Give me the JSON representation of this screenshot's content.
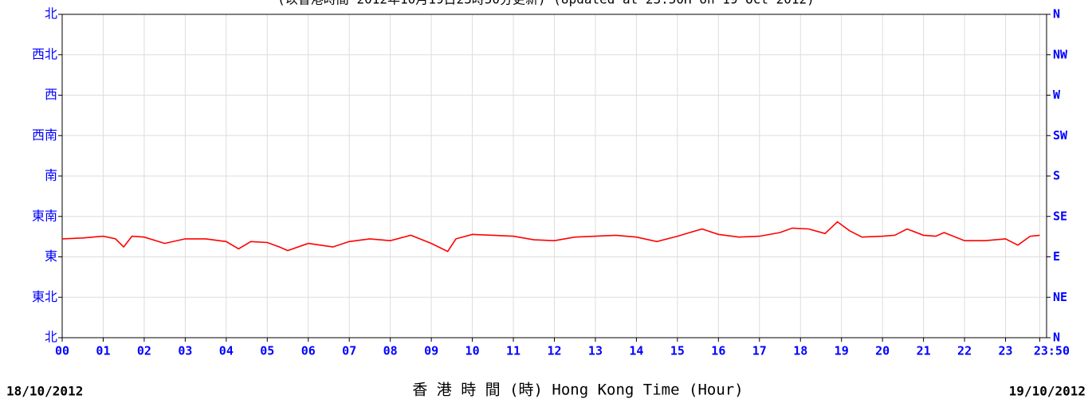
{
  "chart_data": {
    "type": "line",
    "title": "(以香港時間 2012年10月19日23時50分更新) (Updated at 23:50H on 19 Oct 2012)",
    "x_label": "香 港 時 間 (時) Hong Kong Time (Hour)",
    "start_date": "18/10/2012",
    "end_date": "19/10/2012",
    "xlim": [
      0,
      24
    ],
    "xticks": [
      {
        "value": 0,
        "label": "00"
      },
      {
        "value": 1,
        "label": "01"
      },
      {
        "value": 2,
        "label": "02"
      },
      {
        "value": 3,
        "label": "03"
      },
      {
        "value": 4,
        "label": "04"
      },
      {
        "value": 5,
        "label": "05"
      },
      {
        "value": 6,
        "label": "06"
      },
      {
        "value": 7,
        "label": "07"
      },
      {
        "value": 8,
        "label": "08"
      },
      {
        "value": 9,
        "label": "09"
      },
      10,
      11,
      12,
      13,
      14,
      15,
      16,
      17,
      18,
      19,
      20,
      21,
      22,
      23,
      {
        "value": 23.833,
        "label": "23:50"
      }
    ],
    "ylim": [
      0,
      360
    ],
    "yticks": [
      {
        "value": 0,
        "label": "北"
      },
      {
        "value": 45,
        "label": "東北"
      },
      {
        "value": 90,
        "label": "東"
      },
      {
        "value": 135,
        "label": "東南"
      },
      {
        "value": 180,
        "label": "南"
      },
      {
        "value": 225,
        "label": "西南"
      },
      {
        "value": 270,
        "label": "西"
      },
      {
        "value": 315,
        "label": "西北"
      },
      {
        "value": 360,
        "label": "北"
      }
    ],
    "y2lim": [
      0,
      360
    ],
    "y2ticks": [
      {
        "value": 0,
        "label": "N"
      },
      {
        "value": 45,
        "label": "NE"
      },
      {
        "value": 90,
        "label": "E"
      },
      {
        "value": 135,
        "label": "SE"
      },
      {
        "value": 180,
        "label": "S"
      },
      {
        "value": 225,
        "label": "SW"
      },
      {
        "value": 270,
        "label": "W"
      },
      {
        "value": 315,
        "label": "NW"
      },
      {
        "value": 360,
        "label": "N"
      }
    ],
    "grid": true,
    "x": [
      0,
      0.5,
      1,
      1.3,
      1.5,
      1.7,
      2,
      2.5,
      3,
      3.5,
      4,
      4.3,
      4.6,
      5,
      5.3,
      5.5,
      6,
      6.3,
      6.6,
      7,
      7.5,
      8,
      8.5,
      9,
      9.4,
      9.6,
      10,
      10.5,
      11,
      11.5,
      12,
      12.5,
      13,
      13.5,
      14,
      14.5,
      15,
      15.3,
      15.6,
      16,
      16.5,
      17,
      17.5,
      17.8,
      18.2,
      18.6,
      18.9,
      19.2,
      19.5,
      20,
      20.3,
      20.6,
      21,
      21.3,
      21.5,
      22,
      22.5,
      23,
      23.3,
      23.6,
      23.833
    ],
    "series": [
      {
        "color": "#ff0000",
        "values": [
          110,
          111,
          113,
          110,
          101,
          113,
          112,
          105,
          110,
          110,
          107,
          99,
          107,
          106,
          101,
          97,
          105,
          103,
          101,
          107,
          110,
          108,
          114,
          105,
          96,
          110,
          115,
          114,
          113,
          109,
          108,
          112,
          113,
          114,
          112,
          107,
          113,
          117,
          121,
          115,
          112,
          113,
          117,
          122,
          121,
          116,
          129,
          119,
          112,
          113,
          114,
          121,
          114,
          113,
          117,
          108,
          108,
          110,
          103,
          113,
          114
        ]
      }
    ]
  }
}
